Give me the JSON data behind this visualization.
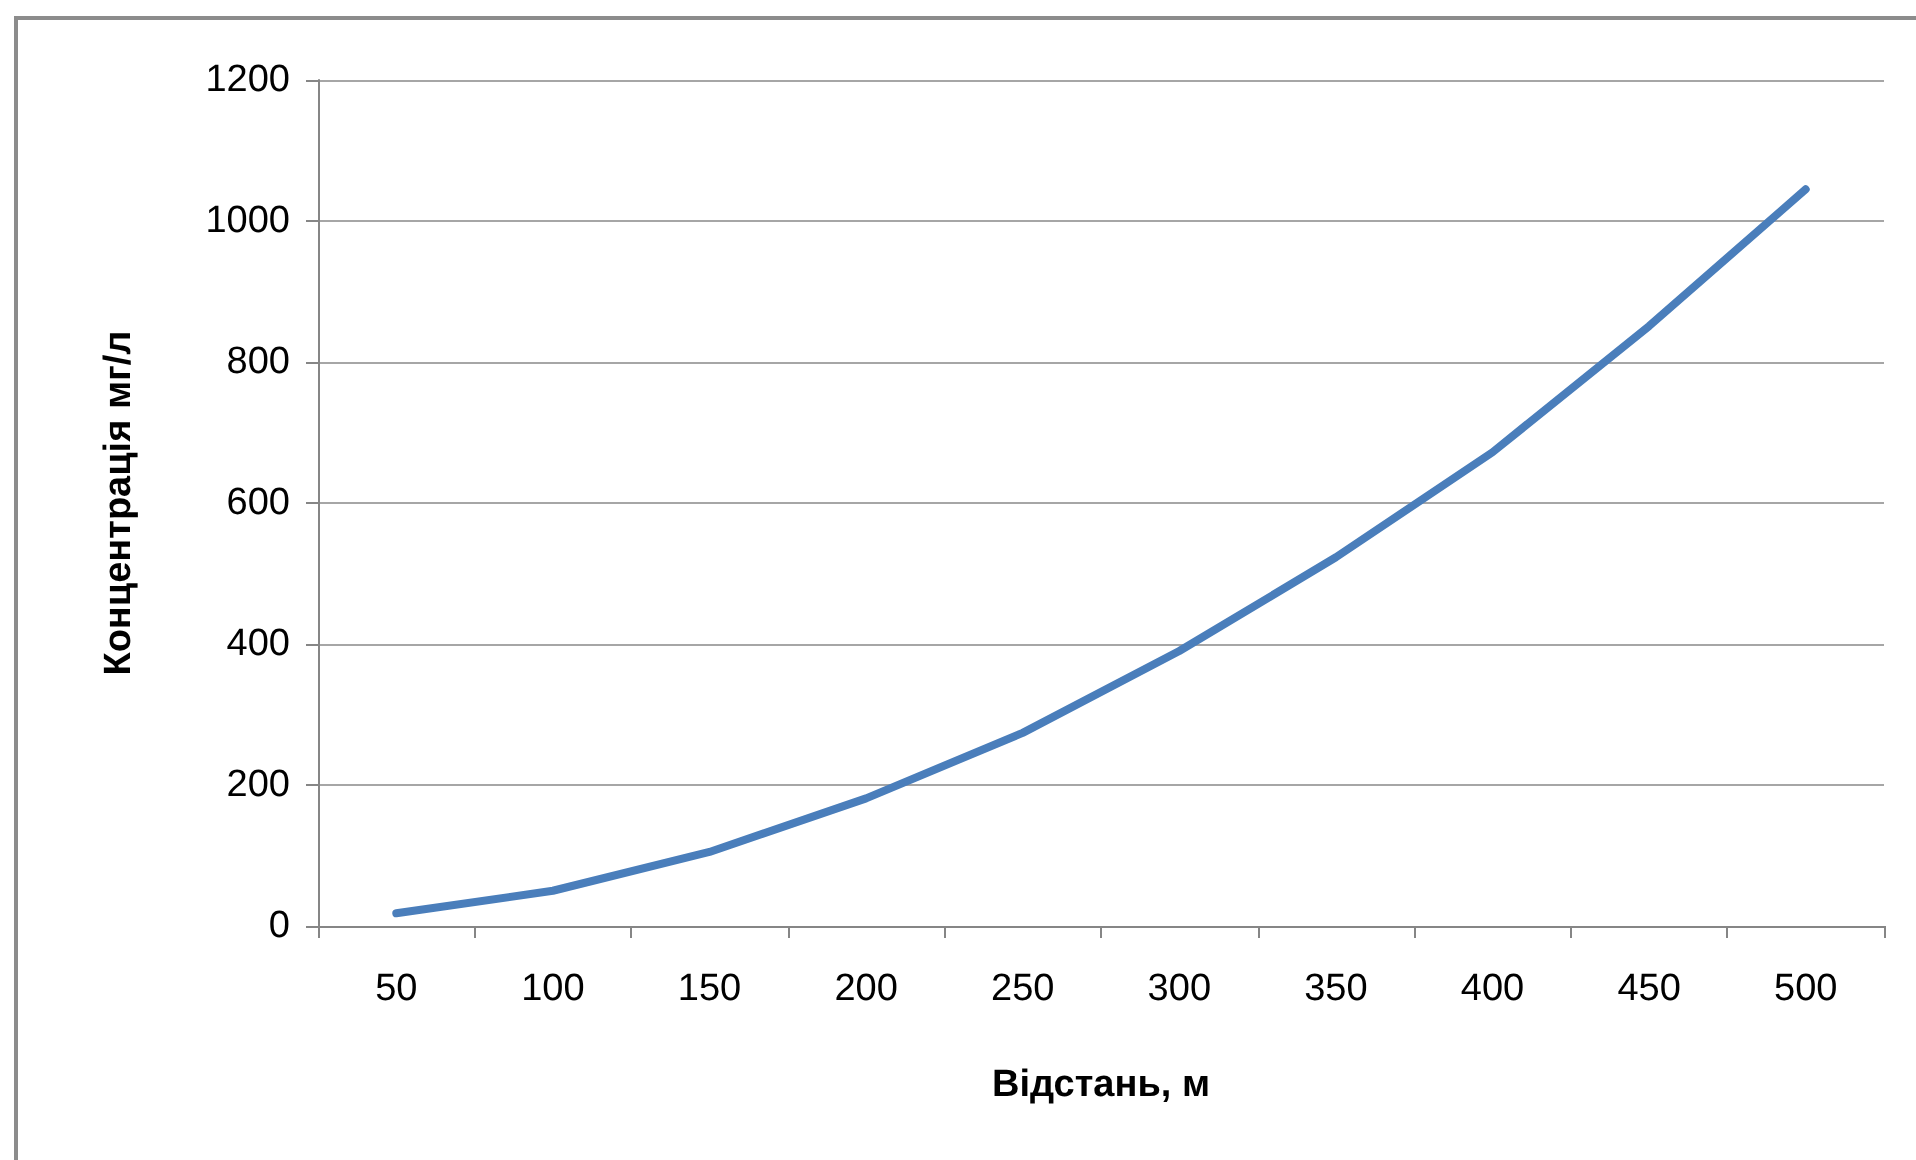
{
  "chart_data": {
    "type": "line",
    "xlabel": "Відстань, м",
    "ylabel": "Концентрація мг/л",
    "categories": [
      "50",
      "100",
      "150",
      "200",
      "250",
      "300",
      "350",
      "400",
      "450",
      "500"
    ],
    "values": [
      18,
      50,
      105,
      181,
      274,
      390,
      523,
      672,
      851,
      1045
    ],
    "color": "#4a7ebb",
    "ylim": [
      0,
      1200
    ],
    "yticks": [
      0,
      200,
      400,
      600,
      800,
      1000,
      1200
    ],
    "grid": "y",
    "marker": "none",
    "line_style": "solid"
  }
}
